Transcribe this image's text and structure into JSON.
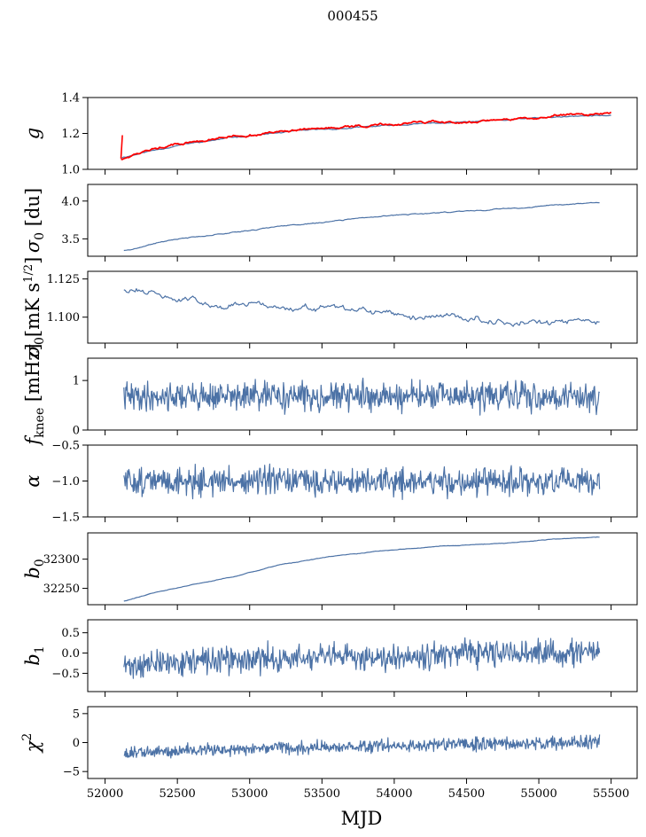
{
  "figure": {
    "title": "000455",
    "xlabel": "MJD"
  },
  "chart_data": [
    {
      "type": "line",
      "ylabel": "g",
      "ylabel_kind": "italic",
      "xlim": [
        51880,
        55680
      ],
      "ylim": [
        1.0,
        1.4
      ],
      "yticks": [
        1.0,
        1.2,
        1.4
      ],
      "yticklabels": [
        "1.0",
        "1.2",
        "1.4"
      ],
      "series": [
        {
          "color": "#4c72a6",
          "kind": "trend",
          "points": [
            [
              52110,
              1.065
            ],
            [
              52300,
              1.1
            ],
            [
              52500,
              1.135
            ],
            [
              52700,
              1.155
            ],
            [
              52900,
              1.18
            ],
            [
              53100,
              1.195
            ],
            [
              53300,
              1.21
            ],
            [
              53500,
              1.22
            ],
            [
              53800,
              1.235
            ],
            [
              54100,
              1.25
            ],
            [
              54400,
              1.26
            ],
            [
              54700,
              1.27
            ],
            [
              55000,
              1.285
            ],
            [
              55300,
              1.295
            ],
            [
              55500,
              1.3
            ]
          ],
          "noise": 0.002,
          "seed": 11
        },
        {
          "color": "#ff0000",
          "kind": "trend",
          "points": [
            [
              52110,
              1.06
            ],
            [
              52300,
              1.105
            ],
            [
              52500,
              1.14
            ],
            [
              52700,
              1.16
            ],
            [
              52900,
              1.185
            ],
            [
              53100,
              1.2
            ],
            [
              53300,
              1.215
            ],
            [
              53500,
              1.225
            ],
            [
              53800,
              1.24
            ],
            [
              54100,
              1.255
            ],
            [
              54400,
              1.265
            ],
            [
              54700,
              1.275
            ],
            [
              55000,
              1.29
            ],
            [
              55300,
              1.305
            ],
            [
              55500,
              1.31
            ]
          ],
          "noise": 0.004,
          "seed": 12,
          "spike": {
            "x": 52110,
            "y_low": 1.06,
            "y_high": 1.19
          }
        }
      ]
    },
    {
      "type": "line",
      "ylabel": "σ0 [du]",
      "ylabel_kind": "sigma_du",
      "xlim": [
        51880,
        55680
      ],
      "ylim": [
        3.27,
        4.22
      ],
      "yticks": [
        3.5,
        4.0
      ],
      "yticklabels": [
        "3.5",
        "4.0"
      ],
      "series": [
        {
          "color": "#4c72a6",
          "kind": "trend",
          "points": [
            [
              52130,
              3.35
            ],
            [
              52200,
              3.37
            ],
            [
              52350,
              3.44
            ],
            [
              52500,
              3.5
            ],
            [
              52800,
              3.57
            ],
            [
              53100,
              3.64
            ],
            [
              53500,
              3.72
            ],
            [
              54000,
              3.81
            ],
            [
              54500,
              3.87
            ],
            [
              55000,
              3.93
            ],
            [
              55420,
              3.98
            ]
          ],
          "noise": 0.004,
          "seed": 21
        }
      ]
    },
    {
      "type": "line",
      "ylabel": "σ0[mK s1/2]",
      "ylabel_kind": "sigma_mk",
      "xlim": [
        51880,
        55680
      ],
      "ylim": [
        1.083,
        1.13
      ],
      "yticks": [
        1.1,
        1.125
      ],
      "yticklabels": [
        "1.100",
        "1.125"
      ],
      "series": [
        {
          "color": "#4c72a6",
          "kind": "trend",
          "points": [
            [
              52130,
              1.119
            ],
            [
              52300,
              1.116
            ],
            [
              52500,
              1.112
            ],
            [
              52800,
              1.109
            ],
            [
              53100,
              1.107
            ],
            [
              53400,
              1.105
            ],
            [
              53700,
              1.103
            ],
            [
              54000,
              1.101
            ],
            [
              54400,
              1.1
            ],
            [
              54800,
              1.098
            ],
            [
              55100,
              1.096
            ],
            [
              55420,
              1.096
            ]
          ],
          "noise": 0.0012,
          "seed": 31
        }
      ]
    },
    {
      "type": "line",
      "ylabel": "fknee [mHz]",
      "ylabel_kind": "fknee",
      "xlim": [
        51880,
        55680
      ],
      "ylim": [
        0.0,
        1.45
      ],
      "yticks": [
        0,
        1
      ],
      "yticklabels": [
        "0",
        "1"
      ],
      "series": [
        {
          "color": "#4c72a6",
          "kind": "noise",
          "points": [
            [
              52130,
              0.68
            ],
            [
              55420,
              0.68
            ]
          ],
          "noise": 0.14,
          "seed": 41
        }
      ]
    },
    {
      "type": "line",
      "ylabel": "α",
      "ylabel_kind": "italic",
      "xlim": [
        51880,
        55680
      ],
      "ylim": [
        -1.5,
        -0.5
      ],
      "yticks": [
        -1.5,
        -1.0,
        -0.5
      ],
      "yticklabels": [
        "−1.5",
        "−1.0",
        "−0.5"
      ],
      "series": [
        {
          "color": "#4c72a6",
          "kind": "noise",
          "points": [
            [
              52130,
              -1.0
            ],
            [
              55420,
              -1.02
            ]
          ],
          "noise": 0.095,
          "seed": 51
        }
      ]
    },
    {
      "type": "line",
      "ylabel": "b0",
      "ylabel_kind": "b0",
      "xlim": [
        51880,
        55680
      ],
      "ylim": [
        32222,
        32345
      ],
      "yticks": [
        32250,
        32300
      ],
      "yticklabels": [
        "32250",
        "32300"
      ],
      "series": [
        {
          "color": "#4c72a6",
          "kind": "trend",
          "points": [
            [
              52130,
              32228
            ],
            [
              52300,
              32240
            ],
            [
              52600,
              32256
            ],
            [
              52900,
              32270
            ],
            [
              53200,
              32290
            ],
            [
              53500,
              32302
            ],
            [
              53900,
              32314
            ],
            [
              54300,
              32322
            ],
            [
              54800,
              32328
            ],
            [
              55100,
              32334
            ],
            [
              55420,
              32338
            ]
          ],
          "noise": 0.3,
          "seed": 61
        }
      ]
    },
    {
      "type": "line",
      "ylabel": "b1",
      "ylabel_kind": "b1",
      "xlim": [
        51880,
        55680
      ],
      "ylim": [
        -0.95,
        0.82
      ],
      "yticks": [
        -0.5,
        0.0,
        0.5
      ],
      "yticklabels": [
        "−0.5",
        "0.0",
        "0.5"
      ],
      "series": [
        {
          "color": "#4c72a6",
          "kind": "noise",
          "points": [
            [
              52130,
              -0.32
            ],
            [
              52600,
              -0.2
            ],
            [
              53500,
              -0.12
            ],
            [
              54500,
              -0.02
            ],
            [
              55420,
              0.0
            ]
          ],
          "noise": 0.16,
          "seed": 71
        }
      ]
    },
    {
      "type": "line",
      "ylabel": "χ2",
      "ylabel_kind": "chi2",
      "xlim": [
        51880,
        55680
      ],
      "ylim": [
        -6.2,
        6.2
      ],
      "yticks": [
        -5,
        0,
        5
      ],
      "yticklabels": [
        "−5",
        "0",
        "5"
      ],
      "series": [
        {
          "color": "#4c72a6",
          "kind": "noise",
          "points": [
            [
              52130,
              -1.9
            ],
            [
              52600,
              -1.3
            ],
            [
              53500,
              -0.8
            ],
            [
              54500,
              -0.3
            ],
            [
              55420,
              0.0
            ]
          ],
          "noise": 0.55,
          "seed": 81
        }
      ]
    }
  ],
  "xaxis": {
    "ticks": [
      52000,
      52500,
      53000,
      53500,
      54000,
      54500,
      55000,
      55500
    ],
    "ticklabels": [
      "52000",
      "52500",
      "53000",
      "53500",
      "54000",
      "54500",
      "55000",
      "55500"
    ]
  }
}
